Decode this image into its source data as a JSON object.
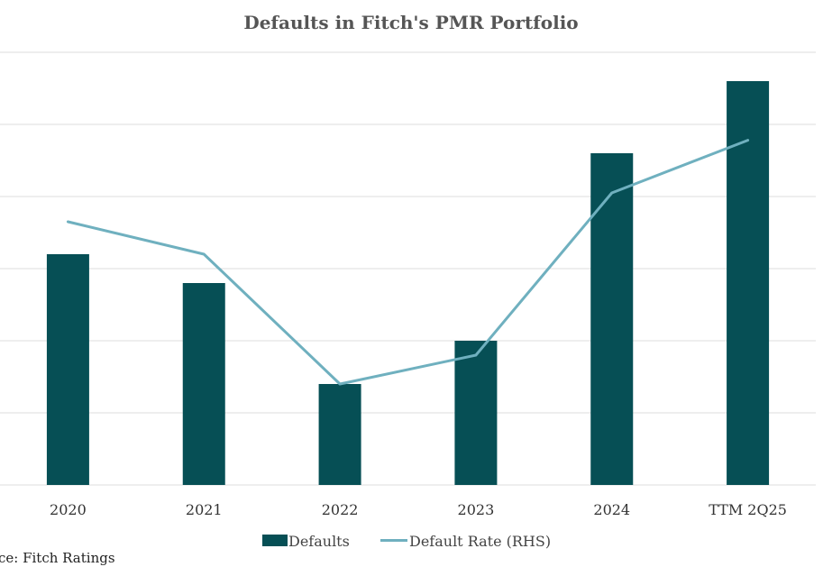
{
  "chart_data": {
    "type": "bar",
    "title": "Defaults in Fitch's PMR Portfolio",
    "categories": [
      "2020",
      "2021",
      "2022",
      "2023",
      "2024",
      "TTM 2Q25"
    ],
    "series": [
      {
        "name": "Defaults",
        "kind": "bar",
        "axis": "left",
        "color": "#064f55",
        "values": [
          32,
          28,
          14,
          20,
          46,
          56
        ]
      },
      {
        "name": "Default Rate (RHS)",
        "kind": "line",
        "axis": "right",
        "color": "#6fb0bf",
        "values": [
          3.65,
          3.2,
          1.4,
          1.8,
          4.05,
          4.78
        ]
      }
    ],
    "ylim": [
      0,
      60
    ],
    "y2lim": [
      0,
      6
    ],
    "grid": true,
    "y_tick_labels_visible": false,
    "legend_position": "bottom"
  },
  "source": "ce: Fitch Ratings"
}
